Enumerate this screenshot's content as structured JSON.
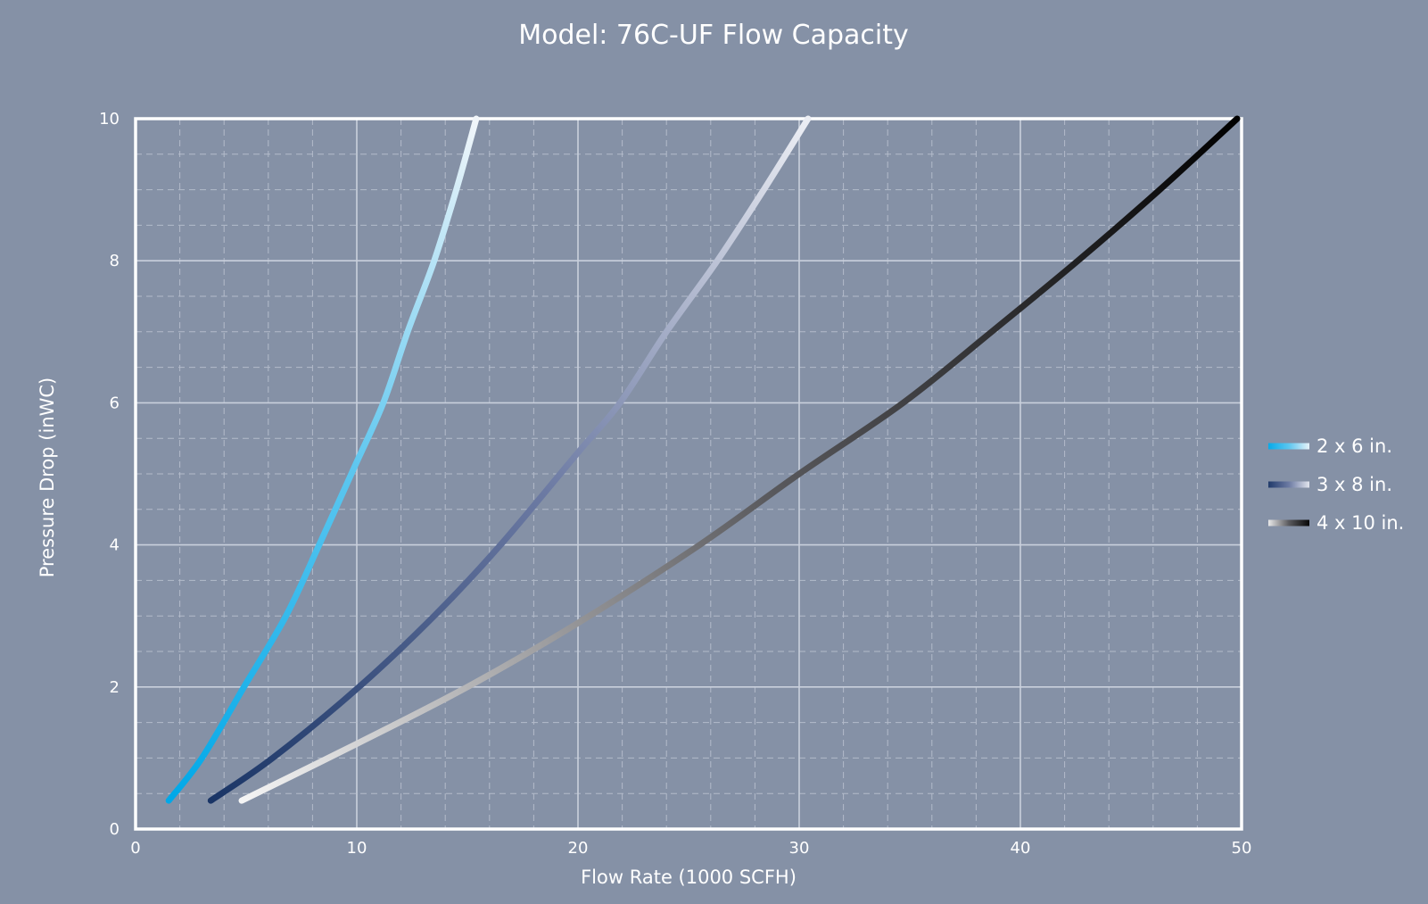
{
  "chart_data": {
    "type": "line",
    "title": "Model: 76C-UF Flow Capacity",
    "xlabel": "Flow Rate (1000 SCFH)",
    "ylabel": "Pressure Drop (inWC)",
    "xlim": [
      0,
      50
    ],
    "ylim": [
      0,
      10
    ],
    "x_ticks": [
      0,
      10,
      20,
      30,
      40,
      50
    ],
    "y_ticks": [
      0,
      2,
      4,
      6,
      8,
      10
    ],
    "x_minor_step": 2,
    "y_minor_step": 0.5,
    "grid": true,
    "legend_position": "right",
    "series": [
      {
        "name": "2 x 6 in.",
        "x": [
          1.5,
          3.0,
          4.9,
          6.8,
          8.3,
          9.9,
          11.2,
          12.3,
          13.5,
          14.5,
          15.4
        ],
        "y": [
          0.4,
          1.0,
          2.0,
          3.0,
          4.0,
          5.1,
          6.0,
          7.0,
          8.0,
          9.0,
          10.0
        ],
        "gradient": [
          "#00a8e8",
          "#5cc6ef",
          "#f2f6fa"
        ]
      },
      {
        "name": "3 x 8 in.",
        "x": [
          3.4,
          6.2,
          10.1,
          13.5,
          16.5,
          20.0,
          21.9,
          24.0,
          26.3,
          28.4,
          30.4
        ],
        "y": [
          0.4,
          1.0,
          2.0,
          3.0,
          4.0,
          5.3,
          6.0,
          7.0,
          8.0,
          9.0,
          10.0
        ],
        "gradient": [
          "#1a3566",
          "#6c7aa3",
          "#eceef4"
        ]
      },
      {
        "name": "4 x 10 in.",
        "x": [
          4.8,
          10.0,
          15.0,
          20.0,
          25.5,
          30.0,
          34.7,
          38.7,
          42.6,
          46.3,
          49.8
        ],
        "y": [
          0.4,
          1.2,
          2.0,
          2.9,
          4.0,
          5.0,
          6.0,
          7.0,
          8.0,
          9.0,
          10.0
        ],
        "gradient": [
          "#f5f5f5",
          "#5a5a5e",
          "#000000"
        ]
      }
    ]
  }
}
